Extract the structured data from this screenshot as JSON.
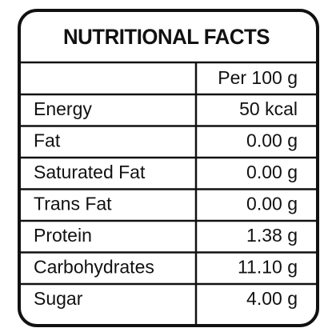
{
  "header": {
    "title": "NUTRITIONAL FACTS"
  },
  "table": {
    "column_header": "Per 100 g",
    "rows": [
      [
        "Energy",
        "50 kcal"
      ],
      [
        "Fat",
        "0.00 g"
      ],
      [
        "Saturated Fat",
        "0.00 g"
      ],
      [
        "Trans Fat",
        "0.00 g"
      ],
      [
        "Protein",
        "1.38 g"
      ],
      [
        "Carbohydrates",
        "11.10 g"
      ],
      [
        "Sugar",
        "4.00 g"
      ]
    ]
  }
}
